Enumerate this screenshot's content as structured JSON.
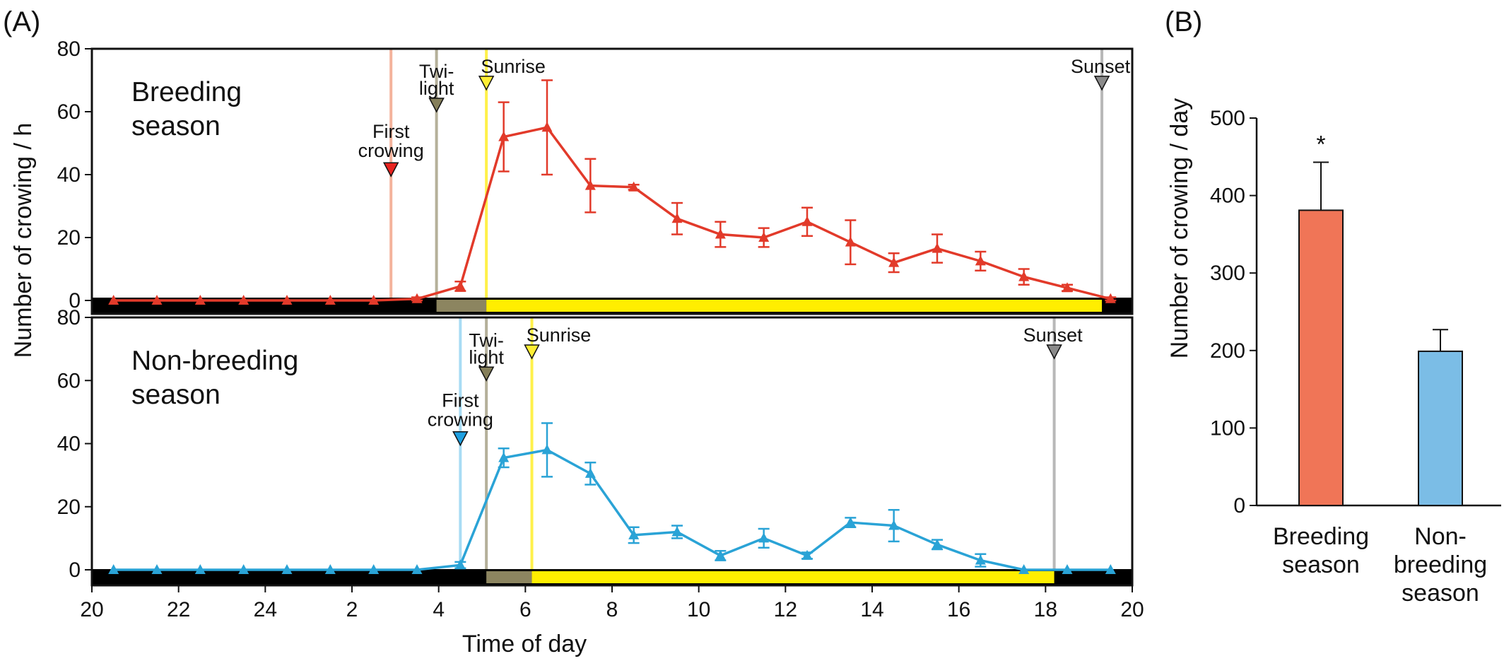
{
  "panel_labels": {
    "a": "(A)",
    "b": "(B)"
  },
  "chart_data": [
    {
      "type": "line",
      "panel": "(A)",
      "ylabel": "Number of crowing / h",
      "xlabel": "Time of day",
      "x_tick_labels": [
        "20",
        "22",
        "24",
        "2",
        "4",
        "6",
        "8",
        "10",
        "12",
        "14",
        "16",
        "18",
        "20"
      ],
      "y_tick_labels": [
        "0",
        "20",
        "40",
        "60",
        "80"
      ],
      "ylim": [
        0,
        80
      ],
      "xlim_hours_from_20": [
        0,
        24
      ],
      "colors": {
        "breeding": "#e23a2a",
        "nonbreeding": "#2aa3d6",
        "night": "#000000",
        "twilight": "#8c8560",
        "day": "#ffee00",
        "sunset_line": "#b8b8b8"
      },
      "subpanels": [
        {
          "name": "breeding",
          "label_line1": "Breeding",
          "label_line2": "season",
          "series_color": "#e23a2a",
          "x": [
            20.5,
            21.5,
            22.5,
            23.5,
            24.5,
            25.5,
            26.5,
            27.5,
            28.5,
            29.5,
            30.5,
            31.5,
            32.5,
            33.5,
            34.5,
            35.5,
            36.5,
            37.5,
            38.5,
            39.5,
            40.5,
            41.5,
            42.5,
            43.5
          ],
          "y": [
            0,
            0,
            0,
            0,
            0,
            0,
            0,
            0.5,
            4.5,
            52,
            55,
            36.5,
            36,
            26,
            21,
            20,
            25,
            18.5,
            12,
            16.5,
            12.5,
            7.5,
            4,
            0.5
          ],
          "err": [
            0,
            0,
            0,
            0,
            0,
            0,
            0,
            0.5,
            1.5,
            11,
            15,
            8.5,
            0.8,
            5,
            4,
            3,
            4.5,
            7,
            3,
            4.5,
            3,
            2.5,
            1,
            0.5
          ],
          "events": {
            "first_crowing": {
              "time": 26.9,
              "label_line1": "First",
              "label_line2": "crowing"
            },
            "twilight": {
              "time": 27.95,
              "label_line1": "Twi-",
              "label_line2": "light"
            },
            "sunrise": {
              "time": 29.1,
              "label": "Sunrise"
            },
            "sunset": {
              "time": 43.3,
              "label": "Sunset"
            }
          }
        },
        {
          "name": "nonbreeding",
          "label_line1": "Non-breeding",
          "label_line2": "season",
          "series_color": "#2aa3d6",
          "x": [
            20.5,
            21.5,
            22.5,
            23.5,
            24.5,
            25.5,
            26.5,
            27.5,
            28.5,
            29.5,
            30.5,
            31.5,
            32.5,
            33.5,
            34.5,
            35.5,
            36.5,
            37.5,
            38.5,
            39.5,
            40.5,
            41.5,
            42.5,
            43.5
          ],
          "y": [
            0,
            0,
            0,
            0,
            0,
            0,
            0,
            0,
            1.5,
            35.5,
            38,
            30.5,
            11,
            12,
            4.5,
            10,
            4.5,
            15,
            14,
            8,
            3,
            0,
            0,
            0
          ],
          "err": [
            0,
            0,
            0,
            0,
            0,
            0,
            0,
            0,
            1,
            3,
            8.5,
            3.5,
            2.5,
            2,
            1.5,
            3,
            1,
            1.5,
            5,
            1.5,
            2,
            0,
            0,
            0
          ],
          "events": {
            "first_crowing": {
              "time": 28.5,
              "label_line1": "First",
              "label_line2": "crowing"
            },
            "twilight": {
              "time": 29.1,
              "label_line1": "Twi-",
              "label_line2": "light"
            },
            "sunrise": {
              "time": 30.15,
              "label": "Sunrise"
            },
            "sunset": {
              "time": 42.2,
              "label": "Sunset"
            }
          }
        }
      ]
    },
    {
      "type": "bar",
      "panel": "(B)",
      "ylabel": "Number of crowing / day",
      "y_tick_labels": [
        "0",
        "100",
        "200",
        "300",
        "400",
        "500"
      ],
      "ylim": [
        0,
        500
      ],
      "categories": [
        {
          "line1": "Breeding",
          "line2": "season",
          "line3": ""
        },
        {
          "line1": "Non-",
          "line2": "breeding",
          "line3": "season"
        }
      ],
      "values": [
        381,
        199
      ],
      "err": [
        62,
        28
      ],
      "colors": [
        "#f07557",
        "#7bbde6"
      ],
      "significance": "*"
    }
  ]
}
